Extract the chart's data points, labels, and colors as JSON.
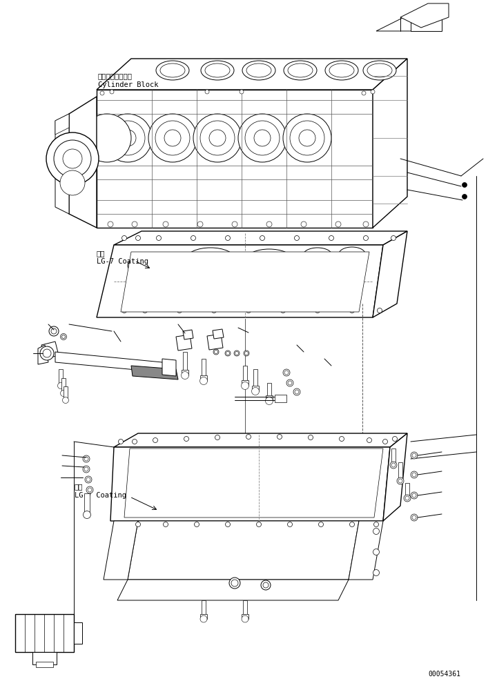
{
  "background_color": "#ffffff",
  "line_color": "#000000",
  "fig_width": 7.2,
  "fig_height": 10.0,
  "dpi": 100,
  "part_number": "00054361",
  "label_cb_jp": "シリンダブロック",
  "label_cb_en": "Cylinder Block",
  "label_lg7_jp": "塗布",
  "label_lg7_en": "LG-7 Coating"
}
